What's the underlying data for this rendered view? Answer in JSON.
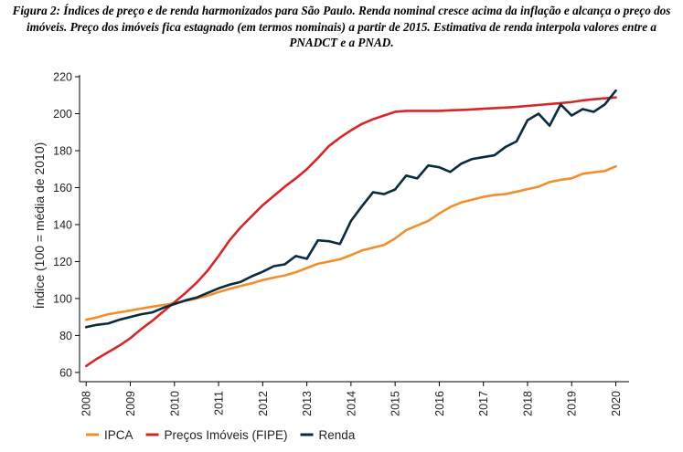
{
  "caption": "Figura 2: Índices de preço e de renda harmonizados para São Paulo. Renda nominal cresce acima da inflação e alcança o preço dos imóveis. Preço dos imóveis fica estagnado (em termos nominais) a partir de 2015. Estimativa de renda interpola valores entre a PNADCT e a PNAD.",
  "chart_data": {
    "type": "line",
    "title": "",
    "xlabel": "",
    "ylabel": "Índice (100 = média de 2010)",
    "xlim": [
      2007.85,
      2020.3
    ],
    "ylim": [
      55,
      221
    ],
    "xticks": [
      2008,
      2009,
      2010,
      2011,
      2012,
      2013,
      2014,
      2015,
      2016,
      2017,
      2018,
      2019,
      2020
    ],
    "xtick_labels": [
      "2008",
      "2009",
      "2010",
      "2011",
      "2012",
      "2013",
      "2014",
      "2015",
      "2016",
      "2017",
      "2018",
      "2019",
      "2020"
    ],
    "yticks": [
      60,
      80,
      100,
      120,
      140,
      160,
      180,
      200,
      220
    ],
    "ytick_labels": [
      "60",
      "80",
      "100",
      "120",
      "140",
      "160",
      "180",
      "200",
      "220"
    ],
    "grid": false,
    "legend_position": "bottom-left",
    "series": [
      {
        "name": "IPCA",
        "color": "#F28E2B",
        "x": [
          2008,
          2008.25,
          2008.5,
          2008.75,
          2009,
          2009.25,
          2009.5,
          2009.75,
          2010,
          2010.25,
          2010.5,
          2010.75,
          2011,
          2011.25,
          2011.5,
          2011.75,
          2012,
          2012.25,
          2012.5,
          2012.75,
          2013,
          2013.25,
          2013.5,
          2013.75,
          2014,
          2014.25,
          2014.5,
          2014.75,
          2015,
          2015.25,
          2015.5,
          2015.75,
          2016,
          2016.25,
          2016.5,
          2016.75,
          2017,
          2017.25,
          2017.5,
          2017.75,
          2018,
          2018.25,
          2018.5,
          2018.75,
          2019,
          2019.25,
          2019.5,
          2019.75,
          2020
        ],
        "y": [
          88.5,
          89.8,
          91.5,
          92.5,
          93.5,
          94.6,
          95.6,
          96.5,
          97.5,
          98.7,
          100.0,
          101.5,
          103.5,
          105.2,
          106.8,
          108.2,
          110.0,
          111.3,
          112.5,
          114.2,
          116.5,
          118.8,
          120.0,
          121.2,
          123.5,
          126.0,
          127.5,
          129.0,
          132.5,
          137.0,
          139.5,
          142.0,
          146.0,
          149.5,
          152.0,
          153.5,
          155.0,
          156.0,
          156.5,
          157.8,
          159.2,
          160.5,
          163.0,
          164.2,
          165.0,
          167.5,
          168.3,
          169.0,
          171.5
        ]
      },
      {
        "name": "Preços Imóveis (FIPE)",
        "color": "#D62728",
        "x": [
          2008,
          2008.25,
          2008.5,
          2008.75,
          2009,
          2009.25,
          2009.5,
          2009.75,
          2010,
          2010.25,
          2010.5,
          2010.75,
          2011,
          2011.25,
          2011.5,
          2011.75,
          2012,
          2012.25,
          2012.5,
          2012.75,
          2013,
          2013.25,
          2013.5,
          2013.75,
          2014,
          2014.25,
          2014.5,
          2014.75,
          2015,
          2015.25,
          2015.5,
          2015.75,
          2016,
          2016.25,
          2016.5,
          2016.75,
          2017,
          2017.25,
          2017.5,
          2017.75,
          2018,
          2018.25,
          2018.5,
          2018.75,
          2019,
          2019.25,
          2019.5,
          2019.75,
          2020
        ],
        "y": [
          63.5,
          67.5,
          71.0,
          74.5,
          78.5,
          83.5,
          88.0,
          93.0,
          98.0,
          103.0,
          108.5,
          115.0,
          123.0,
          131.5,
          138.5,
          144.5,
          150.5,
          155.5,
          160.5,
          165.0,
          170.0,
          176.0,
          182.5,
          187.0,
          191.0,
          194.5,
          197.0,
          199.0,
          201.0,
          201.5,
          201.5,
          201.5,
          201.5,
          201.8,
          202.0,
          202.3,
          202.7,
          203.0,
          203.3,
          203.7,
          204.2,
          204.7,
          205.2,
          205.7,
          206.3,
          207.2,
          207.8,
          208.3,
          208.8
        ]
      },
      {
        "name": "Renda",
        "color": "#0B2A3D",
        "x": [
          2008,
          2008.25,
          2008.5,
          2008.75,
          2009,
          2009.25,
          2009.5,
          2009.75,
          2010,
          2010.25,
          2010.5,
          2010.75,
          2011,
          2011.25,
          2011.5,
          2011.75,
          2012,
          2012.25,
          2012.5,
          2012.75,
          2013,
          2013.25,
          2013.5,
          2013.75,
          2014,
          2014.25,
          2014.5,
          2014.75,
          2015,
          2015.25,
          2015.5,
          2015.75,
          2016,
          2016.25,
          2016.5,
          2016.75,
          2017,
          2017.25,
          2017.5,
          2017.75,
          2018,
          2018.25,
          2018.5,
          2018.75,
          2019,
          2019.25,
          2019.5,
          2019.75,
          2020
        ],
        "y": [
          84.5,
          85.8,
          86.5,
          88.5,
          90.0,
          91.5,
          92.5,
          95.0,
          97.0,
          99.0,
          100.5,
          103.0,
          105.5,
          107.5,
          109.0,
          112.0,
          114.5,
          117.5,
          118.5,
          123.0,
          121.5,
          131.5,
          131.0,
          129.5,
          142.0,
          150.0,
          157.5,
          156.5,
          159.0,
          166.5,
          165.0,
          172.0,
          171.0,
          168.5,
          173.0,
          175.5,
          176.5,
          177.5,
          182.0,
          185.0,
          196.5,
          200.0,
          193.5,
          205.0,
          199.0,
          202.5,
          201.0,
          205.0,
          212.5
        ]
      }
    ]
  }
}
